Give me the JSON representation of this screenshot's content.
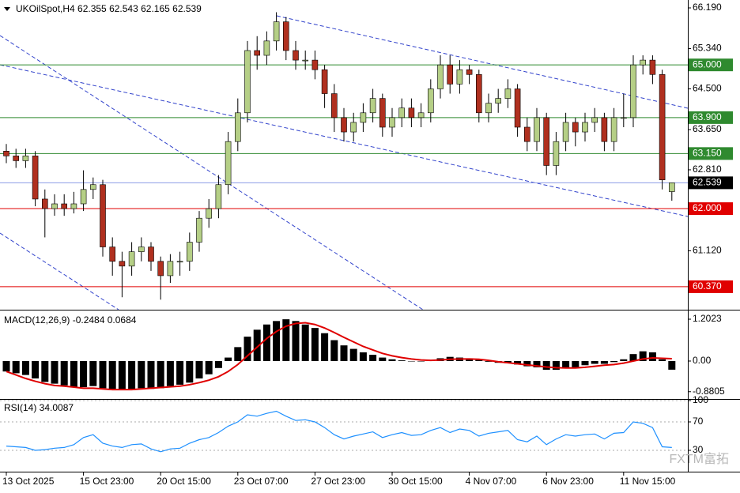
{
  "chart_data": [
    {
      "type": "candlestick",
      "title": "UKOilSpot,H4  62.355 62.543 62.165 62.539",
      "categories": [
        "13 Oct 2025",
        null,
        null,
        null,
        null,
        null,
        null,
        null,
        "15 Oct 23:00",
        null,
        null,
        null,
        null,
        null,
        null,
        null,
        "20 Oct 15:00",
        null,
        null,
        null,
        null,
        null,
        null,
        null,
        "23 Oct 07:00",
        null,
        null,
        null,
        null,
        null,
        null,
        null,
        "27 Oct 23:00",
        null,
        null,
        null,
        null,
        null,
        null,
        null,
        "30 Oct 15:00",
        null,
        null,
        null,
        null,
        null,
        null,
        null,
        "4 Nov 07:00",
        null,
        null,
        null,
        null,
        null,
        null,
        null,
        "6 Nov 23:00",
        null,
        null,
        null,
        null,
        null,
        null,
        null,
        "11 Nov 15:00",
        null,
        null,
        null,
        null,
        null
      ],
      "open": [
        63.2,
        63.1,
        63.0,
        63.1,
        62.2,
        62.0,
        62.1,
        62.0,
        62.1,
        62.4,
        62.5,
        61.2,
        60.9,
        60.8,
        61.1,
        61.2,
        60.9,
        60.6,
        60.9,
        60.9,
        61.3,
        61.8,
        62.0,
        62.5,
        63.4,
        64.0,
        65.3,
        65.2,
        65.5,
        65.9,
        65.3,
        65.1,
        65.1,
        64.9,
        64.4,
        63.9,
        63.6,
        63.8,
        64.0,
        64.3,
        63.7,
        63.9,
        64.1,
        63.9,
        64.0,
        64.5,
        65.0,
        64.6,
        64.9,
        64.8,
        64.0,
        64.2,
        64.3,
        64.5,
        63.7,
        63.4,
        63.9,
        62.9,
        63.4,
        63.8,
        63.6,
        63.8,
        63.9,
        63.4,
        63.9,
        63.9,
        65.0,
        65.1,
        64.8,
        62.355
      ],
      "high": [
        63.35,
        63.25,
        63.25,
        63.2,
        62.4,
        62.3,
        62.3,
        62.35,
        62.8,
        62.65,
        62.6,
        61.4,
        61.1,
        61.3,
        61.4,
        61.3,
        61.0,
        61.05,
        61.1,
        61.5,
        61.95,
        62.2,
        62.7,
        63.6,
        64.3,
        65.5,
        65.6,
        65.7,
        66.1,
        66.0,
        65.5,
        65.3,
        65.3,
        65.0,
        64.6,
        64.1,
        64.0,
        64.2,
        64.5,
        64.4,
        64.1,
        64.3,
        64.3,
        64.2,
        64.7,
        65.2,
        65.2,
        65.1,
        65.0,
        64.9,
        64.4,
        64.5,
        64.7,
        64.6,
        63.9,
        64.1,
        64.0,
        63.6,
        64.0,
        63.9,
        64.0,
        64.1,
        64.0,
        64.1,
        64.4,
        65.2,
        65.2,
        65.2,
        64.9,
        62.543
      ],
      "low": [
        62.95,
        62.85,
        62.85,
        62.05,
        61.4,
        61.85,
        61.85,
        61.9,
        61.95,
        62.2,
        61.0,
        60.6,
        60.15,
        60.6,
        60.9,
        60.7,
        60.1,
        60.45,
        60.6,
        60.7,
        61.1,
        61.6,
        61.8,
        62.3,
        63.2,
        63.8,
        64.9,
        65.0,
        65.3,
        65.1,
        64.9,
        64.9,
        64.7,
        64.1,
        63.6,
        63.4,
        63.4,
        63.6,
        63.8,
        63.5,
        63.5,
        63.7,
        63.7,
        63.7,
        63.8,
        64.3,
        64.4,
        64.4,
        64.6,
        63.8,
        63.8,
        64.0,
        64.1,
        63.5,
        63.2,
        63.2,
        62.7,
        62.7,
        63.2,
        63.3,
        63.4,
        63.6,
        63.2,
        63.2,
        63.7,
        63.7,
        64.8,
        64.6,
        62.4,
        62.165
      ],
      "close": [
        63.1,
        63.0,
        63.1,
        62.2,
        62.0,
        62.1,
        62.0,
        62.1,
        62.4,
        62.5,
        61.2,
        60.9,
        60.8,
        61.1,
        61.2,
        60.9,
        60.6,
        60.9,
        60.9,
        61.3,
        61.8,
        62.0,
        62.5,
        63.4,
        64.0,
        65.3,
        65.2,
        65.5,
        65.9,
        65.3,
        65.1,
        65.1,
        64.9,
        64.4,
        63.9,
        63.6,
        63.8,
        64.0,
        64.3,
        63.7,
        63.9,
        64.1,
        63.9,
        64.0,
        64.5,
        65.0,
        64.6,
        64.9,
        64.8,
        64.0,
        64.2,
        64.3,
        64.5,
        63.7,
        63.4,
        63.9,
        62.9,
        63.4,
        63.8,
        63.6,
        63.8,
        63.9,
        63.4,
        63.9,
        63.9,
        65.0,
        65.1,
        64.8,
        62.6,
        62.539
      ],
      "up_color": "#b5cf86",
      "down_color": "#b0301f",
      "ylim": [
        59.89,
        66.355
      ],
      "yticks": [
        {
          "value": 66.19,
          "label": "66.190"
        },
        {
          "value": 65.34,
          "label": "65.340"
        },
        {
          "value": 64.5,
          "label": "64.500"
        },
        {
          "value": 63.65,
          "label": "63.650"
        },
        {
          "value": 62.81,
          "label": "62.810"
        },
        {
          "value": 61.12,
          "label": "61.120"
        }
      ],
      "levels": [
        {
          "value": 65.0,
          "label": "65.000",
          "color": "#2f8a2f",
          "line": "#2f8a2f"
        },
        {
          "value": 63.9,
          "label": "63.900",
          "color": "#2f8a2f",
          "line": "#2f8a2f"
        },
        {
          "value": 63.15,
          "label": "63.150",
          "color": "#2f8a2f",
          "line": "#2f8a2f"
        },
        {
          "value": 62.539,
          "label": "62.539",
          "color": "#000000",
          "line": "#8c9be6"
        },
        {
          "value": 62.0,
          "label": "62.000",
          "color": "#e00000",
          "line": "#e00000"
        },
        {
          "value": 60.37,
          "label": "60.370",
          "color": "#e00000",
          "line": "#e00000"
        }
      ],
      "watermark": "FXTM富拓"
    },
    {
      "type": "macd",
      "title": "MACD(12,26,9) -0.2484 0.0684",
      "series": [
        {
          "kind": "bar",
          "color": "#000000",
          "values": [
            -0.3,
            -0.35,
            -0.4,
            -0.5,
            -0.6,
            -0.65,
            -0.7,
            -0.75,
            -0.75,
            -0.72,
            -0.78,
            -0.8,
            -0.82,
            -0.8,
            -0.78,
            -0.8,
            -0.78,
            -0.72,
            -0.68,
            -0.62,
            -0.5,
            -0.38,
            -0.2,
            0.1,
            0.4,
            0.7,
            0.9,
            1.05,
            1.15,
            1.2,
            1.15,
            1.05,
            0.95,
            0.8,
            0.6,
            0.45,
            0.35,
            0.25,
            0.18,
            0.1,
            0.05,
            0.02,
            0.0,
            0.0,
            0.03,
            0.08,
            0.12,
            0.1,
            0.08,
            0.03,
            -0.02,
            -0.05,
            -0.06,
            -0.1,
            -0.15,
            -0.18,
            -0.25,
            -0.25,
            -0.2,
            -0.18,
            -0.12,
            -0.08,
            -0.08,
            -0.03,
            0.05,
            0.2,
            0.28,
            0.25,
            0.05,
            -0.2484
          ]
        },
        {
          "kind": "line",
          "color": "#e00000",
          "values": [
            -0.3,
            -0.4,
            -0.5,
            -0.58,
            -0.65,
            -0.7,
            -0.72,
            -0.75,
            -0.78,
            -0.78,
            -0.8,
            -0.82,
            -0.82,
            -0.82,
            -0.8,
            -0.78,
            -0.76,
            -0.74,
            -0.72,
            -0.68,
            -0.62,
            -0.55,
            -0.45,
            -0.3,
            -0.1,
            0.15,
            0.4,
            0.65,
            0.85,
            1.0,
            1.08,
            1.1,
            1.05,
            0.95,
            0.82,
            0.68,
            0.55,
            0.42,
            0.32,
            0.22,
            0.15,
            0.1,
            0.06,
            0.03,
            0.02,
            0.03,
            0.05,
            0.06,
            0.06,
            0.05,
            0.02,
            -0.02,
            -0.05,
            -0.08,
            -0.11,
            -0.14,
            -0.17,
            -0.19,
            -0.2,
            -0.2,
            -0.18,
            -0.15,
            -0.12,
            -0.1,
            -0.06,
            0.0,
            0.06,
            0.09,
            0.08,
            0.0684
          ]
        }
      ],
      "ylim": [
        -1.09,
        1.407
      ],
      "yticks": [
        1.2023,
        {
          "value": 0,
          "label": "0.00"
        },
        -0.8805
      ]
    },
    {
      "type": "line",
      "title": "RSI(14) 34.0087",
      "color": "#1e90ff",
      "values": [
        36,
        35,
        34,
        30,
        31,
        33,
        34,
        38,
        48,
        52,
        40,
        36,
        34,
        38,
        39,
        32,
        28,
        32,
        33,
        40,
        45,
        48,
        55,
        64,
        70,
        80,
        78,
        82,
        85,
        78,
        72,
        73,
        70,
        62,
        52,
        46,
        50,
        53,
        56,
        48,
        52,
        55,
        51,
        52,
        58,
        62,
        55,
        60,
        58,
        50,
        54,
        56,
        58,
        45,
        42,
        50,
        38,
        46,
        52,
        50,
        52,
        53,
        46,
        54,
        55,
        70,
        68,
        62,
        35,
        34.0087
      ],
      "ylim": [
        0,
        100
      ],
      "yticks": [
        100,
        70,
        30
      ],
      "grid": true
    }
  ]
}
